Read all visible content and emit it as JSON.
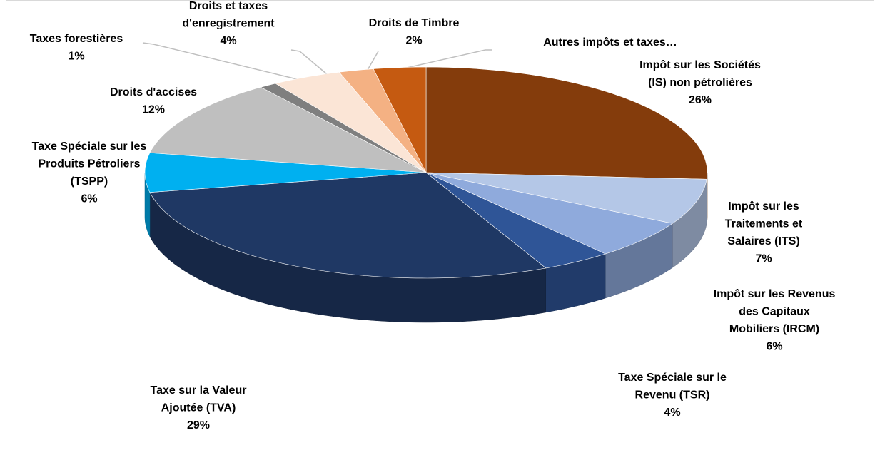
{
  "chart_data": {
    "type": "pie",
    "style": "3d",
    "categories": [
      "Impôt sur les Sociétés (IS) non pétrolières",
      "Impôt sur les Traitements et Salaires (ITS)",
      "Impôt sur les Revenus des Capitaux Mobiliers (IRCM)",
      "Taxe Spéciale sur le Revenu (TSR)",
      "Taxe sur la Valeur Ajoutée (TVA)",
      "Taxe Spéciale sur les Produits Pétroliers (TSPP)",
      "Droits d'accises",
      "Taxes forestières",
      "Droits et taxes d'enregistrement",
      "Droits de Timbre",
      "Autres impôts et taxes…"
    ],
    "values": [
      26,
      7,
      6,
      4,
      29,
      6,
      12,
      1,
      4,
      2,
      3
    ],
    "value_labels": [
      "26%",
      "7%",
      "6%",
      "4%",
      "29%",
      "6%",
      "12%",
      "1%",
      "4%",
      "2%",
      null
    ],
    "colors": [
      "#843c0c",
      "#b4c7e7",
      "#8faadc",
      "#2f5597",
      "#1f3864",
      "#00b0f0",
      "#bfbfbf",
      "#7f7f7f",
      "#fbe5d6",
      "#f4b183",
      "#c55a11"
    ]
  }
}
